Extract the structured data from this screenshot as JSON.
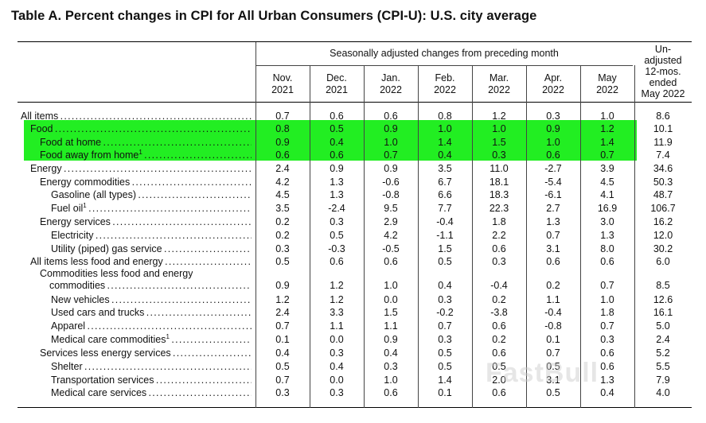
{
  "title": "Table A. Percent changes in CPI for All Urban Consumers (CPI-U): U.S. city average",
  "header": {
    "span_label": "Seasonally adjusted changes from preceding month",
    "months": [
      {
        "m": "Nov.",
        "y": "2021"
      },
      {
        "m": "Dec.",
        "y": "2021"
      },
      {
        "m": "Jan.",
        "y": "2022"
      },
      {
        "m": "Feb.",
        "y": "2022"
      },
      {
        "m": "Mar.",
        "y": "2022"
      },
      {
        "m": "Apr.",
        "y": "2022"
      },
      {
        "m": "May",
        "y": "2022"
      }
    ],
    "last_col": [
      "Un-",
      "adjusted",
      "12-mos.",
      "ended",
      "May 2022"
    ]
  },
  "highlight_color": "#22ee22",
  "watermark": "FastBull",
  "rows": [
    {
      "label": "All items",
      "sup": "",
      "indent": 0,
      "values": [
        "0.7",
        "0.6",
        "0.6",
        "0.8",
        "1.2",
        "0.3",
        "1.0",
        "8.6"
      ]
    },
    {
      "label": "Food",
      "sup": "",
      "indent": 1,
      "highlight": true,
      "values": [
        "0.8",
        "0.5",
        "0.9",
        "1.0",
        "1.0",
        "0.9",
        "1.2",
        "10.1"
      ]
    },
    {
      "label": "Food at home",
      "sup": "",
      "indent": 2,
      "highlight": true,
      "values": [
        "0.9",
        "0.4",
        "1.0",
        "1.4",
        "1.5",
        "1.0",
        "1.4",
        "11.9"
      ]
    },
    {
      "label": "Food away from home",
      "sup": "1",
      "indent": 2,
      "highlight": true,
      "values": [
        "0.6",
        "0.6",
        "0.7",
        "0.4",
        "0.3",
        "0.6",
        "0.7",
        "7.4"
      ]
    },
    {
      "label": "Energy",
      "sup": "",
      "indent": 1,
      "values": [
        "2.4",
        "0.9",
        "0.9",
        "3.5",
        "11.0",
        "-2.7",
        "3.9",
        "34.6"
      ]
    },
    {
      "label": "Energy commodities",
      "sup": "",
      "indent": 2,
      "values": [
        "4.2",
        "1.3",
        "-0.6",
        "6.7",
        "18.1",
        "-5.4",
        "4.5",
        "50.3"
      ]
    },
    {
      "label": "Gasoline (all types)",
      "sup": "",
      "indent": 3,
      "values": [
        "4.5",
        "1.3",
        "-0.8",
        "6.6",
        "18.3",
        "-6.1",
        "4.1",
        "48.7"
      ]
    },
    {
      "label": "Fuel oil",
      "sup": "1",
      "indent": 3,
      "values": [
        "3.5",
        "-2.4",
        "9.5",
        "7.7",
        "22.3",
        "2.7",
        "16.9",
        "106.7"
      ]
    },
    {
      "label": "Energy services",
      "sup": "",
      "indent": 2,
      "values": [
        "0.2",
        "0.3",
        "2.9",
        "-0.4",
        "1.8",
        "1.3",
        "3.0",
        "16.2"
      ]
    },
    {
      "label": "Electricity",
      "sup": "",
      "indent": 3,
      "values": [
        "0.2",
        "0.5",
        "4.2",
        "-1.1",
        "2.2",
        "0.7",
        "1.3",
        "12.0"
      ]
    },
    {
      "label": "Utility (piped) gas service",
      "sup": "",
      "indent": 3,
      "values": [
        "0.3",
        "-0.3",
        "-0.5",
        "1.5",
        "0.6",
        "3.1",
        "8.0",
        "30.2"
      ]
    },
    {
      "label": "All items less food and energy",
      "sup": "",
      "indent": 1,
      "values": [
        "0.5",
        "0.6",
        "0.6",
        "0.5",
        "0.3",
        "0.6",
        "0.6",
        "6.0"
      ]
    },
    {
      "label": "commodities",
      "label_line1": "Commodities less food and energy",
      "sup": "",
      "indent": 2,
      "double": true,
      "values": [
        "0.9",
        "1.2",
        "1.0",
        "0.4",
        "-0.4",
        "0.2",
        "0.7",
        "8.5"
      ]
    },
    {
      "label": "New vehicles",
      "sup": "",
      "indent": 3,
      "values": [
        "1.2",
        "1.2",
        "0.0",
        "0.3",
        "0.2",
        "1.1",
        "1.0",
        "12.6"
      ]
    },
    {
      "label": "Used cars and trucks",
      "sup": "",
      "indent": 3,
      "values": [
        "2.4",
        "3.3",
        "1.5",
        "-0.2",
        "-3.8",
        "-0.4",
        "1.8",
        "16.1"
      ]
    },
    {
      "label": "Apparel",
      "sup": "",
      "indent": 3,
      "values": [
        "0.7",
        "1.1",
        "1.1",
        "0.7",
        "0.6",
        "-0.8",
        "0.7",
        "5.0"
      ]
    },
    {
      "label": "Medical care commodities",
      "sup": "1",
      "indent": 3,
      "values": [
        "0.1",
        "0.0",
        "0.9",
        "0.3",
        "0.2",
        "0.1",
        "0.3",
        "2.4"
      ]
    },
    {
      "label": "Services less energy services",
      "sup": "",
      "indent": 2,
      "values": [
        "0.4",
        "0.3",
        "0.4",
        "0.5",
        "0.6",
        "0.7",
        "0.6",
        "5.2"
      ]
    },
    {
      "label": "Shelter",
      "sup": "",
      "indent": 3,
      "values": [
        "0.5",
        "0.4",
        "0.3",
        "0.5",
        "0.5",
        "0.5",
        "0.6",
        "5.5"
      ]
    },
    {
      "label": "Transportation services",
      "sup": "",
      "indent": 3,
      "values": [
        "0.7",
        "0.0",
        "1.0",
        "1.4",
        "2.0",
        "3.1",
        "1.3",
        "7.9"
      ]
    },
    {
      "label": "Medical care services",
      "sup": "",
      "indent": 3,
      "values": [
        "0.3",
        "0.3",
        "0.6",
        "0.1",
        "0.6",
        "0.5",
        "0.4",
        "4.0"
      ]
    }
  ]
}
